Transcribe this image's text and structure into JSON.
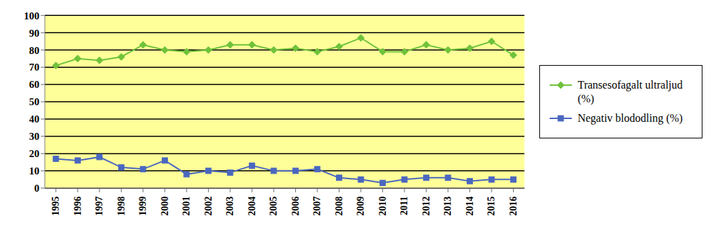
{
  "chart_data": {
    "type": "line",
    "categories": [
      "1995",
      "1996",
      "1997",
      "1998",
      "1999",
      "2000",
      "2001",
      "2002",
      "2003",
      "2004",
      "2005",
      "2006",
      "2007",
      "2008",
      "2009",
      "2010",
      "2011",
      "2012",
      "2013",
      "2014",
      "2015",
      "2016"
    ],
    "series": [
      {
        "name": "Transesofagalt ultraljud (%)",
        "color": "#6fc23a",
        "marker": "diamond",
        "values": [
          71,
          75,
          74,
          76,
          83,
          80,
          79,
          80,
          83,
          83,
          80,
          81,
          79,
          82,
          87,
          79,
          79,
          83,
          80,
          81,
          85,
          77
        ]
      },
      {
        "name": "Negativ blododling (%)",
        "color": "#4a67c0",
        "marker": "square",
        "values": [
          17,
          16,
          18,
          12,
          11,
          16,
          8,
          10,
          9,
          13,
          10,
          10,
          11,
          6,
          5,
          3,
          5,
          6,
          6,
          4,
          5,
          5
        ]
      }
    ],
    "ylim": [
      0,
      100
    ],
    "yticks": [
      0,
      10,
      20,
      30,
      40,
      50,
      60,
      70,
      80,
      90,
      100
    ],
    "grid": true,
    "legend": "right"
  }
}
